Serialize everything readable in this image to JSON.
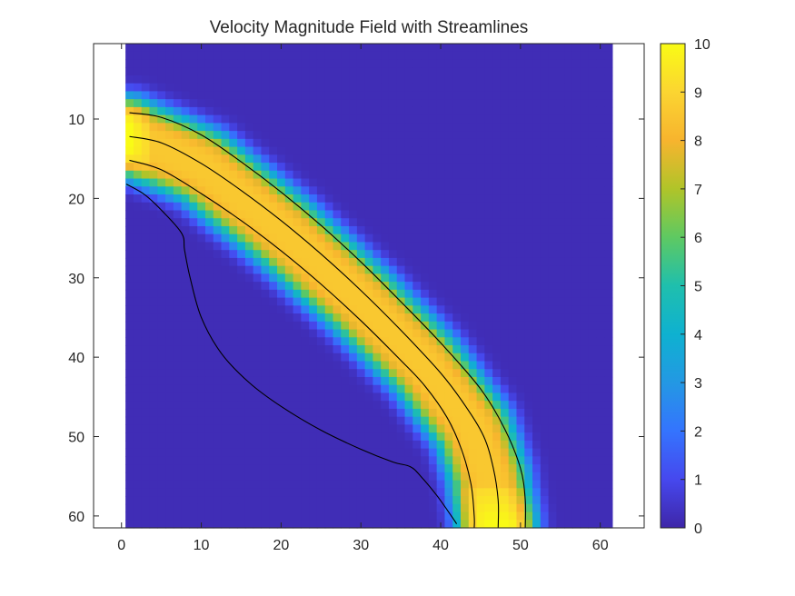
{
  "chart_data": {
    "type": "heatmap",
    "title": "Velocity Magnitude Field with Streamlines",
    "xlim": [
      -3.5,
      65.5
    ],
    "ylim": [
      61.5,
      0.5
    ],
    "y_direction": "reversed",
    "x_ticks": [
      0,
      10,
      20,
      30,
      40,
      50,
      60
    ],
    "y_ticks": [
      10,
      20,
      30,
      40,
      50,
      60
    ],
    "grid": false,
    "image_extent": {
      "x": [
        0.5,
        61.5
      ],
      "y": [
        0.5,
        61.5
      ]
    },
    "colormap": "parula",
    "clim": [
      0,
      10
    ],
    "colorbar": {
      "ticks": [
        0,
        1,
        2,
        3,
        4,
        5,
        6,
        7,
        8,
        9,
        10
      ],
      "location": "right"
    },
    "jet": {
      "description_centerline": [
        [
          1,
          12.2
        ],
        [
          10,
          16
        ],
        [
          20,
          24
        ],
        [
          30,
          33
        ],
        [
          38,
          41
        ],
        [
          44,
          49
        ],
        [
          46,
          55
        ],
        [
          47,
          61
        ]
      ],
      "peak_value": 10,
      "inlet_value": 10,
      "body_value": 8.6,
      "background_value": 0.2
    },
    "streamlines": [
      {
        "points": [
          [
            1,
            9.2
          ],
          [
            5,
            9.8
          ],
          [
            10,
            12
          ],
          [
            15,
            15.4
          ],
          [
            20,
            19.2
          ],
          [
            25,
            23.4
          ],
          [
            30,
            28
          ],
          [
            35,
            33
          ],
          [
            40,
            38.2
          ],
          [
            45,
            44
          ],
          [
            48,
            49
          ],
          [
            50,
            54
          ],
          [
            50.6,
            58
          ],
          [
            50.6,
            61.5
          ]
        ]
      },
      {
        "points": [
          [
            1,
            12.2
          ],
          [
            5,
            13
          ],
          [
            10,
            15.6
          ],
          [
            15,
            19
          ],
          [
            20,
            22.8
          ],
          [
            25,
            27
          ],
          [
            30,
            31.6
          ],
          [
            35,
            36.6
          ],
          [
            40,
            42
          ],
          [
            43,
            46
          ],
          [
            45.4,
            50
          ],
          [
            46.6,
            54
          ],
          [
            47.2,
            58
          ],
          [
            47.2,
            61.5
          ]
        ]
      },
      {
        "points": [
          [
            1,
            15.2
          ],
          [
            5,
            16.4
          ],
          [
            10,
            19.4
          ],
          [
            15,
            22.8
          ],
          [
            20,
            26.6
          ],
          [
            25,
            30.8
          ],
          [
            30,
            35.4
          ],
          [
            35,
            40.4
          ],
          [
            38,
            43.6
          ],
          [
            40.8,
            47.6
          ],
          [
            42.6,
            51.6
          ],
          [
            43.8,
            56
          ],
          [
            44.2,
            60
          ],
          [
            44.2,
            61.5
          ]
        ]
      },
      {
        "points": [
          [
            0.6,
            18.2
          ],
          [
            3,
            19.6
          ],
          [
            5.5,
            22
          ],
          [
            7.6,
            24.5
          ],
          [
            7.9,
            26.5
          ],
          [
            8.6,
            30
          ],
          [
            10,
            35
          ],
          [
            12.5,
            39.5
          ],
          [
            16,
            43.2
          ],
          [
            20,
            46.2
          ],
          [
            25,
            49.2
          ],
          [
            30,
            51.6
          ],
          [
            34,
            53.2
          ],
          [
            36.2,
            53.8
          ],
          [
            37.5,
            55
          ],
          [
            39.5,
            57.4
          ],
          [
            41.2,
            59.8
          ],
          [
            42,
            61
          ]
        ]
      }
    ]
  }
}
